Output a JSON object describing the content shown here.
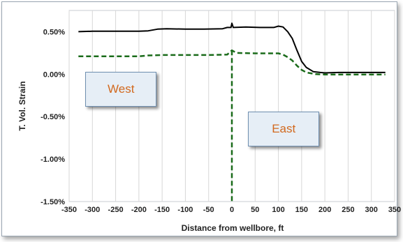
{
  "chart_data": {
    "type": "line",
    "xlabel": "Distance from wellbore, ft",
    "ylabel": "T. Vol. Strain",
    "xlim": [
      -350,
      350
    ],
    "ylim": [
      -1.5,
      0.75
    ],
    "x_ticks": [
      -350,
      -300,
      -250,
      -200,
      -150,
      -100,
      -50,
      0,
      50,
      100,
      150,
      200,
      250,
      300,
      350
    ],
    "y_ticks": [
      {
        "value": 0.5,
        "label": "0.50%"
      },
      {
        "value": 0.0,
        "label": "0.00%"
      },
      {
        "value": -0.5,
        "label": "-0.50%"
      },
      {
        "value": -1.0,
        "label": "-1.00%"
      },
      {
        "value": -1.5,
        "label": "-1.50%"
      }
    ],
    "grid": "vertical",
    "series": [
      {
        "style": "solid",
        "color": "#000000",
        "points": [
          [
            -330,
            0.5
          ],
          [
            -300,
            0.505
          ],
          [
            -250,
            0.505
          ],
          [
            -200,
            0.505
          ],
          [
            -180,
            0.51
          ],
          [
            -160,
            0.53
          ],
          [
            -140,
            0.535
          ],
          [
            -100,
            0.53
          ],
          [
            -60,
            0.53
          ],
          [
            -20,
            0.535
          ],
          [
            -10,
            0.55
          ],
          [
            -2,
            0.55
          ],
          [
            0,
            0.6
          ],
          [
            3,
            0.55
          ],
          [
            30,
            0.555
          ],
          [
            60,
            0.55
          ],
          [
            90,
            0.55
          ],
          [
            100,
            0.565
          ],
          [
            110,
            0.555
          ],
          [
            120,
            0.5
          ],
          [
            130,
            0.42
          ],
          [
            140,
            0.28
          ],
          [
            150,
            0.15
          ],
          [
            160,
            0.08
          ],
          [
            175,
            0.03
          ],
          [
            190,
            0.02
          ],
          [
            200,
            0.015
          ],
          [
            230,
            0.02
          ],
          [
            260,
            0.02
          ],
          [
            300,
            0.02
          ],
          [
            330,
            0.02
          ]
        ]
      },
      {
        "style": "dashed",
        "color": "#1a6b1a",
        "points": [
          [
            -330,
            0.21
          ],
          [
            -200,
            0.21
          ],
          [
            -180,
            0.22
          ],
          [
            -150,
            0.225
          ],
          [
            -100,
            0.225
          ],
          [
            -50,
            0.225
          ],
          [
            -10,
            0.23
          ],
          [
            0,
            0.28
          ],
          [
            10,
            0.25
          ],
          [
            50,
            0.245
          ],
          [
            100,
            0.245
          ],
          [
            110,
            0.23
          ],
          [
            120,
            0.2
          ],
          [
            130,
            0.16
          ],
          [
            140,
            0.1
          ],
          [
            150,
            0.05
          ],
          [
            160,
            0.02
          ],
          [
            180,
            0.0
          ],
          [
            200,
            -0.005
          ],
          [
            250,
            -0.005
          ],
          [
            300,
            -0.005
          ],
          [
            330,
            -0.005
          ]
        ]
      },
      {
        "style": "dashed",
        "color": "#1a6b1a",
        "points": [
          [
            0,
            0.28
          ],
          [
            0,
            -1.5
          ]
        ]
      }
    ],
    "annotations": [
      {
        "text": "West",
        "x": -240,
        "y": -0.17
      },
      {
        "text": "East",
        "x": 110,
        "y": -0.64
      }
    ]
  }
}
